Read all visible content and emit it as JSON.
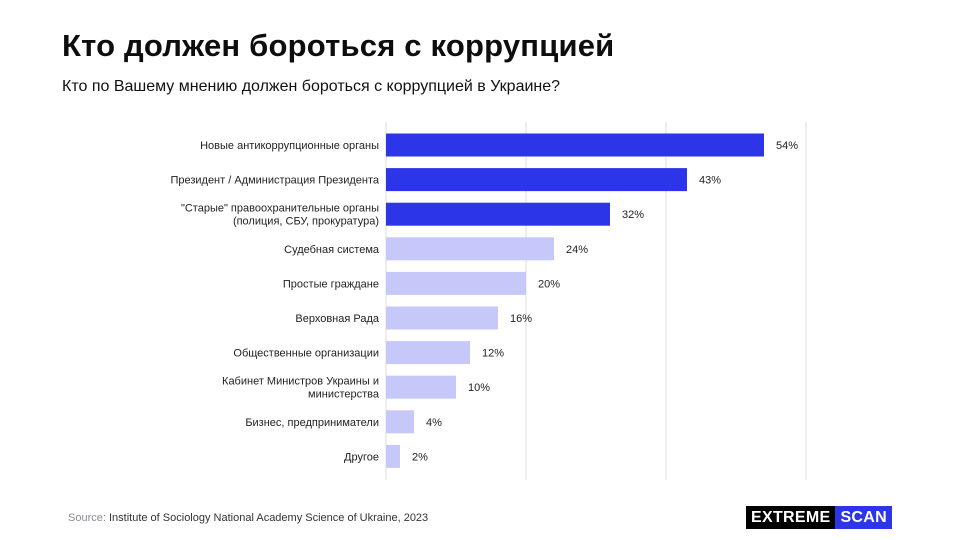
{
  "header": {
    "title": "Кто должен бороться с коррупцией",
    "subtitle": "Кто по Вашему мнению должен бороться с коррупцией в Украине?"
  },
  "chart_data": {
    "type": "bar",
    "orientation": "horizontal",
    "categories": [
      [
        "Новые антикоррупционные органы"
      ],
      [
        "Президент / Администрация Президента"
      ],
      [
        "\"Старые\" правоохранительные органы",
        "(полиция, СБУ, прокуратура)"
      ],
      [
        "Судебная система"
      ],
      [
        "Простые граждане"
      ],
      [
        "Верховная Рада"
      ],
      [
        "Общественные организации"
      ],
      [
        "Кабинет Министров Украины и",
        "министерства"
      ],
      [
        "Бизнес, предприниматели"
      ],
      [
        "Другое"
      ]
    ],
    "values": [
      54,
      43,
      32,
      24,
      20,
      16,
      12,
      10,
      4,
      2
    ],
    "value_labels": [
      "54%",
      "43%",
      "32%",
      "24%",
      "20%",
      "16%",
      "12%",
      "10%",
      "4%",
      "2%"
    ],
    "xlim": [
      0,
      60
    ],
    "grid": true,
    "colors": {
      "highlight": "#2d35e8",
      "normal": "#c6c8fa",
      "grid": "#dddddd"
    },
    "highlight_count": 3
  },
  "footer": {
    "source_label": "Source:",
    "source_text": "Institute of Sociology National Academy Science of Ukraine, 2023"
  },
  "logo": {
    "part1": "EXTREME",
    "part2": "SCAN"
  }
}
